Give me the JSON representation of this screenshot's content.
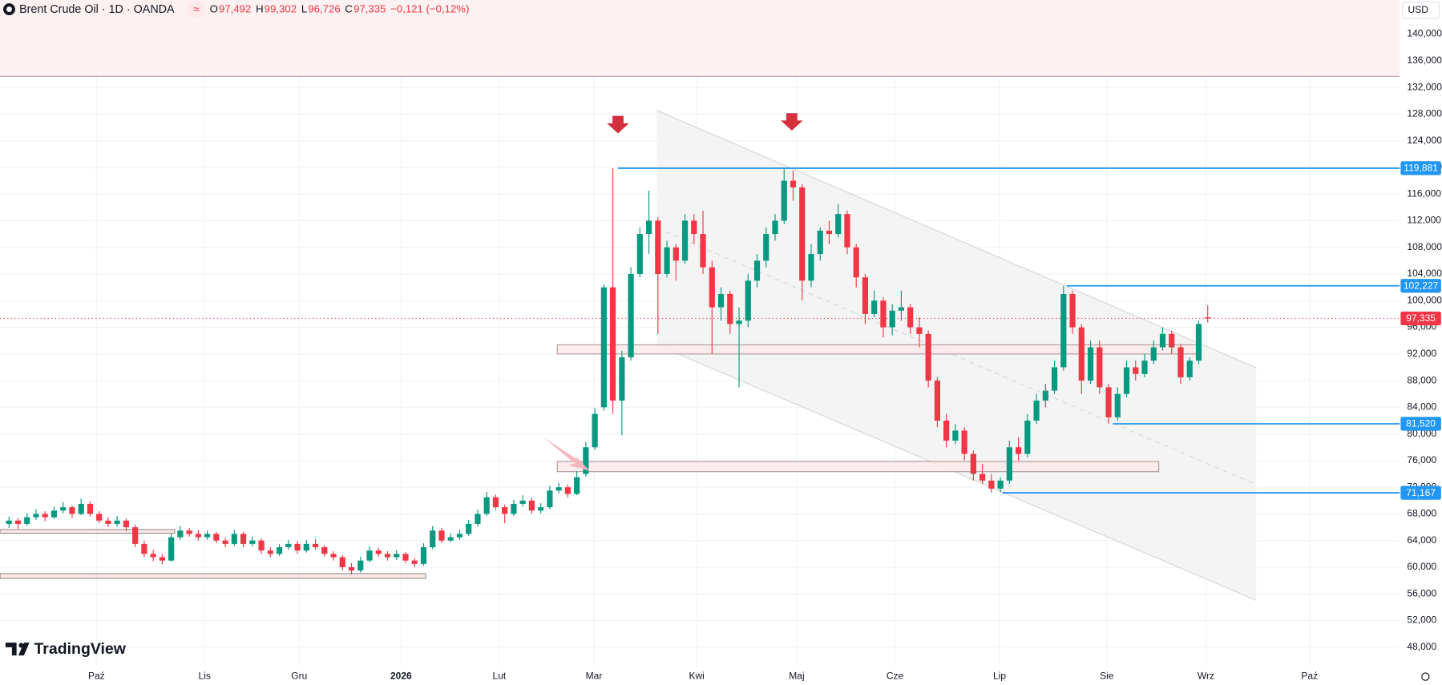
{
  "header": {
    "symbol": "Brent Crude Oil · 1D · OANDA",
    "ohlc": [
      {
        "key": "O",
        "value": 97.492,
        "label": "97,492"
      },
      {
        "key": "H",
        "value": 99.302,
        "label": "99,302"
      },
      {
        "key": "L",
        "value": 96.726,
        "label": "96,726"
      },
      {
        "key": "C",
        "value": 97.335,
        "label": "97,335"
      }
    ],
    "change": "−0,121 (−0,12%)",
    "currency": "USD"
  },
  "branding": "TradingView",
  "chart_data": {
    "type": "candlestick",
    "up_color": "#089981",
    "down_color": "#f23645",
    "grid": true,
    "xlim": [
      -1,
      154.3
    ],
    "ylim": [
      45.1,
      145.1
    ],
    "xticks": [
      {
        "value": 9.7,
        "label": "Paź"
      },
      {
        "value": 21.7,
        "label": "Lis"
      },
      {
        "value": 32.2,
        "label": "Gru"
      },
      {
        "value": 43.5,
        "label": "2026"
      },
      {
        "value": 54.4,
        "label": "Lut"
      },
      {
        "value": 64.9,
        "label": "Mar"
      },
      {
        "value": 76.3,
        "label": "Kwi"
      },
      {
        "value": 87.4,
        "label": "Maj"
      },
      {
        "value": 98.3,
        "label": "Cze"
      },
      {
        "value": 109.9,
        "label": "Lip"
      },
      {
        "value": 121.8,
        "label": "Sie"
      },
      {
        "value": 132.8,
        "label": "Wrz"
      },
      {
        "value": 144.3,
        "label": "Paź"
      }
    ],
    "yticks": [
      {
        "value": 48,
        "label": "48,000"
      },
      {
        "value": 52,
        "label": "52,000"
      },
      {
        "value": 56,
        "label": "56,000"
      },
      {
        "value": 60,
        "label": "60,000"
      },
      {
        "value": 64,
        "label": "64,000"
      },
      {
        "value": 68,
        "label": "68,000"
      },
      {
        "value": 72,
        "label": "72,000"
      },
      {
        "value": 76,
        "label": "76,000"
      },
      {
        "value": 80,
        "label": "80,000"
      },
      {
        "value": 84,
        "label": "84,000"
      },
      {
        "value": 88,
        "label": "88,000"
      },
      {
        "value": 92,
        "label": "92,000"
      },
      {
        "value": 96,
        "label": "96,000"
      },
      {
        "value": 100,
        "label": "100,000"
      },
      {
        "value": 104,
        "label": "104,000"
      },
      {
        "value": 108,
        "label": "108,000"
      },
      {
        "value": 112,
        "label": "112,000"
      },
      {
        "value": 116,
        "label": "116,000"
      },
      {
        "value": 120,
        "label": "120,000"
      },
      {
        "value": 124,
        "label": "124,000"
      },
      {
        "value": 128,
        "label": "128,000"
      },
      {
        "value": 132,
        "label": "132,000"
      },
      {
        "value": 136,
        "label": "136,000"
      },
      {
        "value": 140,
        "label": "140,000"
      }
    ],
    "levels": [
      {
        "value": 119.881,
        "label": "119,881"
      },
      {
        "value": 102.227,
        "label": "102,227"
      },
      {
        "value": 81.52,
        "label": "81,520"
      },
      {
        "value": 71.167,
        "label": "71,167"
      }
    ],
    "last_price": {
      "value": 97.335,
      "label": "97,335"
    },
    "candles": [
      [
        66.5,
        67.6,
        65.9,
        67
      ],
      [
        67,
        67.4,
        65.8,
        66.5
      ],
      [
        66.5,
        68.1,
        66.2,
        67.5
      ],
      [
        67.5,
        68.7,
        67.1,
        68
      ],
      [
        68,
        68.4,
        66.9,
        67.5
      ],
      [
        67.5,
        69.1,
        67.2,
        68.5
      ],
      [
        68.5,
        69.8,
        68.1,
        69
      ],
      [
        69,
        69.3,
        67.4,
        68
      ],
      [
        68,
        70.3,
        67.8,
        69.5
      ],
      [
        69.5,
        69.9,
        67.6,
        68
      ],
      [
        68,
        68.4,
        66.6,
        67
      ],
      [
        67,
        67.5,
        66,
        66.5
      ],
      [
        66.5,
        67.7,
        66.1,
        67
      ],
      [
        67,
        67.3,
        65.4,
        66
      ],
      [
        66,
        66.4,
        63,
        63.5
      ],
      [
        63.5,
        64,
        61.5,
        62
      ],
      [
        62,
        62.6,
        60.9,
        61.5
      ],
      [
        61.5,
        62,
        60.4,
        61
      ],
      [
        61,
        65,
        60.8,
        64.5
      ],
      [
        64.5,
        66.2,
        64.1,
        65.5
      ],
      [
        65.5,
        65.9,
        64.6,
        65
      ],
      [
        65,
        65.6,
        64,
        64.5
      ],
      [
        64.5,
        65.5,
        64.1,
        65
      ],
      [
        65,
        65.3,
        63.6,
        64
      ],
      [
        64,
        64.4,
        63,
        63.5
      ],
      [
        63.5,
        65.6,
        63.2,
        65
      ],
      [
        65,
        65.3,
        63,
        63.5
      ],
      [
        63.5,
        64.6,
        63.1,
        64
      ],
      [
        64,
        64.3,
        62,
        62.5
      ],
      [
        62.5,
        63,
        61.5,
        62
      ],
      [
        62,
        63.5,
        61.7,
        63
      ],
      [
        63,
        64.1,
        62.6,
        63.5
      ],
      [
        63.5,
        63.9,
        62,
        62.5
      ],
      [
        62.5,
        64.1,
        62.2,
        63.5
      ],
      [
        63.5,
        64.2,
        62.6,
        63
      ],
      [
        63,
        63.3,
        61.6,
        62
      ],
      [
        62,
        62.4,
        61,
        61.5
      ],
      [
        61.5,
        61.8,
        59.5,
        60
      ],
      [
        60,
        60.6,
        58.9,
        59.5
      ],
      [
        59.5,
        61.6,
        59.2,
        61
      ],
      [
        61,
        63.1,
        60.7,
        62.5
      ],
      [
        62.5,
        62.9,
        61.6,
        62
      ],
      [
        62,
        62.4,
        61,
        61.5
      ],
      [
        61.5,
        62.6,
        61.1,
        62
      ],
      [
        62,
        62.3,
        60.6,
        61
      ],
      [
        61,
        61.4,
        60,
        60.5
      ],
      [
        60.5,
        63.6,
        60.2,
        63
      ],
      [
        63,
        66.2,
        62.7,
        65.5
      ],
      [
        65.5,
        65.9,
        63.6,
        64
      ],
      [
        64,
        65.1,
        63.7,
        64.5
      ],
      [
        64.5,
        65.6,
        64.1,
        65
      ],
      [
        65,
        67.1,
        64.7,
        66.5
      ],
      [
        66.5,
        68.6,
        66.1,
        68
      ],
      [
        68,
        71.3,
        67.7,
        70.5
      ],
      [
        70.5,
        70.9,
        68.6,
        69
      ],
      [
        69,
        69.4,
        66.6,
        68
      ],
      [
        68,
        70.1,
        67.7,
        69.5
      ],
      [
        69.5,
        70.8,
        69.1,
        70
      ],
      [
        70,
        70.4,
        68,
        68.5
      ],
      [
        68.5,
        69.6,
        68.1,
        69
      ],
      [
        69,
        72.2,
        68.7,
        71.5
      ],
      [
        71.5,
        72.7,
        71.1,
        72
      ],
      [
        72,
        72.4,
        70.5,
        71
      ],
      [
        71,
        74.4,
        70.8,
        73.5
      ],
      [
        74,
        78.8,
        73.6,
        78
      ],
      [
        78,
        83.9,
        77.6,
        83
      ],
      [
        84,
        102.5,
        83.5,
        102
      ],
      [
        102,
        119.881,
        83,
        85
      ],
      [
        85,
        92.5,
        79.8,
        91.5
      ],
      [
        91.5,
        105,
        91,
        104
      ],
      [
        104,
        111,
        103.5,
        110
      ],
      [
        110,
        116.5,
        107,
        112
      ],
      [
        112,
        112.5,
        95,
        104
      ],
      [
        104,
        109,
        103.5,
        108
      ],
      [
        108,
        108.5,
        103,
        106
      ],
      [
        106,
        113,
        105.5,
        112
      ],
      [
        112,
        113,
        108.5,
        110
      ],
      [
        110,
        113.5,
        104,
        105
      ],
      [
        105,
        106,
        92,
        99
      ],
      [
        99,
        102,
        97,
        101
      ],
      [
        101,
        101.5,
        95,
        96.5
      ],
      [
        96.5,
        99,
        87,
        97
      ],
      [
        97,
        104,
        96,
        103
      ],
      [
        103,
        107,
        102,
        106
      ],
      [
        106,
        111,
        105,
        110
      ],
      [
        110,
        113,
        109,
        112
      ],
      [
        112,
        119.881,
        111.5,
        118
      ],
      [
        118,
        119.5,
        115,
        117
      ],
      [
        117,
        117.5,
        100,
        103
      ],
      [
        103,
        108.5,
        102,
        107
      ],
      [
        107,
        111,
        106,
        110.5
      ],
      [
        110.5,
        112,
        108.5,
        110
      ],
      [
        110,
        114.5,
        109.5,
        113
      ],
      [
        113,
        113.5,
        107,
        108
      ],
      [
        108,
        108.5,
        102,
        103.5
      ],
      [
        103.5,
        104,
        96.5,
        98
      ],
      [
        98,
        101.5,
        97.5,
        100
      ],
      [
        100,
        100.5,
        94.5,
        96
      ],
      [
        96,
        99.5,
        94.8,
        98.5
      ],
      [
        98.5,
        101.5,
        97,
        99
      ],
      [
        99,
        99.5,
        95,
        96
      ],
      [
        96,
        97.5,
        93,
        95
      ],
      [
        95,
        95.5,
        87,
        88
      ],
      [
        88,
        88.5,
        81,
        82
      ],
      [
        82,
        83,
        78,
        79
      ],
      [
        79,
        81.5,
        78.5,
        80.5
      ],
      [
        80.5,
        81,
        76,
        77
      ],
      [
        77,
        77.5,
        73,
        74
      ],
      [
        74,
        75.5,
        72.5,
        73
      ],
      [
        73,
        74,
        71.167,
        71.8
      ],
      [
        71.8,
        73.5,
        71.3,
        73
      ],
      [
        73,
        79,
        72.5,
        78
      ],
      [
        78,
        79.5,
        76,
        77
      ],
      [
        77,
        83,
        76.5,
        82
      ],
      [
        82,
        86,
        81.5,
        85
      ],
      [
        85,
        87.5,
        84,
        86.5
      ],
      [
        86.5,
        91,
        86,
        90
      ],
      [
        90,
        102.227,
        89.5,
        101
      ],
      [
        101,
        101.5,
        95,
        96
      ],
      [
        96,
        96.5,
        86,
        88
      ],
      [
        88,
        94,
        87.5,
        93
      ],
      [
        93,
        94,
        86,
        87
      ],
      [
        87,
        87.5,
        81.52,
        82.5
      ],
      [
        82.5,
        87,
        82,
        86
      ],
      [
        86,
        91,
        85.5,
        90
      ],
      [
        90,
        91,
        88,
        89
      ],
      [
        89,
        92,
        88.5,
        91
      ],
      [
        91,
        94,
        90.5,
        93
      ],
      [
        93,
        96,
        92.5,
        95
      ],
      [
        95,
        95.5,
        92,
        93
      ],
      [
        93,
        93.5,
        87.5,
        88.5
      ],
      [
        88.5,
        91.5,
        88,
        91
      ],
      [
        91,
        97,
        90.5,
        96.5
      ],
      [
        97.492,
        99.302,
        96.726,
        97.335
      ]
    ]
  }
}
